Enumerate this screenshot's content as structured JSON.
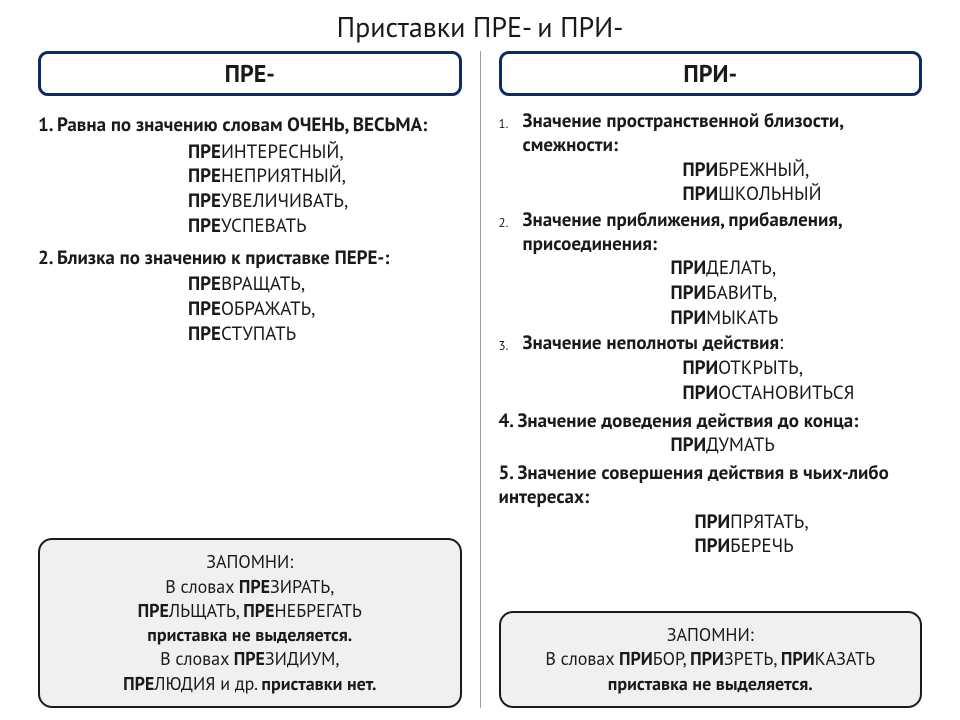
{
  "title": "Приставки ПРЕ- и ПРИ-",
  "left": {
    "header": "ПРЕ-",
    "rule1_prefix": "1. Равна по значению словам ОЧЕНЬ, ВЕСЬМА:",
    "rule1_examples": [
      {
        "pre": "ПРЕ",
        "rest": "ИНТЕРЕСНЫЙ,"
      },
      {
        "pre": "ПРЕ",
        "rest": "НЕПРИЯТНЫЙ,"
      },
      {
        "pre": "ПРЕ",
        "rest": "УВЕЛИЧИВАТЬ,"
      },
      {
        "pre": "ПРЕ",
        "rest": "УСПЕВАТЬ"
      }
    ],
    "rule2_prefix": "2. Близка по значению к приставке ПЕРЕ-:",
    "rule2_examples": [
      {
        "pre": "ПРЕ",
        "rest": "ВРАЩАТЬ,"
      },
      {
        "pre": "ПРЕ",
        "rest": "ОБРАЖАТЬ,"
      },
      {
        "pre": "ПРЕ",
        "rest": "СТУПАТЬ"
      }
    ],
    "note": {
      "l1": "ЗАПОМНИ:",
      "l2a": "В словах ",
      "l2b": "ПРЕ",
      "l2c": "ЗИРАТЬ,",
      "l3a": "ПРЕ",
      "l3b": "ЛЬЩАТЬ, ",
      "l3c": "ПРЕ",
      "l3d": "НЕБРЕГАТЬ",
      "l4": "приставка не выделяется.",
      "l5a": "В словах ",
      "l5b": "ПРЕ",
      "l5c": "ЗИДИУМ,",
      "l6a": "ПРЕ",
      "l6b": "ЛЮДИЯ и др. ",
      "l6c": "приставки нет."
    }
  },
  "right": {
    "header": "ПРИ-",
    "rules_ol": [
      {
        "text_bold": "Значение пространственной близости, смежности:",
        "examples": [
          {
            "pre": "ПРИ",
            "rest": "БРЕЖНЫЙ,"
          },
          {
            "pre": "ПРИ",
            "rest": "ШКОЛЬНЫЙ"
          }
        ]
      },
      {
        "text_bold": "Значение приближения, прибавления, присоединения:",
        "examples": [
          {
            "pre": "ПРИ",
            "rest": "ДЕЛАТЬ,"
          },
          {
            "pre": "ПРИ",
            "rest": "БАВИТЬ,"
          },
          {
            "pre": "ПРИ",
            "rest": "МЫКАТЬ"
          }
        ]
      },
      {
        "text_bold": "Значение неполноты действия",
        "text_norm": ":",
        "examples": [
          {
            "pre": "ПРИ",
            "rest": "ОТКРЫТЬ,"
          },
          {
            "pre": "ПРИ",
            "rest": "ОСТАНОВИТЬСЯ"
          }
        ]
      }
    ],
    "rule4": "4. Значение доведения действия до конца:",
    "rule4_examples": [
      {
        "pre": "ПРИ",
        "rest": "ДУМАТЬ"
      }
    ],
    "rule5": "5. Значение совершения действия в чьих-либо интересах:",
    "rule5_examples": [
      {
        "pre": "ПРИ",
        "rest": "ПРЯТАТЬ,"
      },
      {
        "pre": "ПРИ",
        "rest": "БЕРЕЧЬ"
      }
    ],
    "note": {
      "l1": "ЗАПОМНИ:",
      "l2a": "В словах ",
      "l2b": "ПРИ",
      "l2c": "БОР, ",
      "l2d": "ПРИ",
      "l2e": "ЗРЕТЬ, ",
      "l2f": "ПРИ",
      "l2g": "КАЗАТЬ",
      "l3": "приставка не выделяется."
    }
  }
}
